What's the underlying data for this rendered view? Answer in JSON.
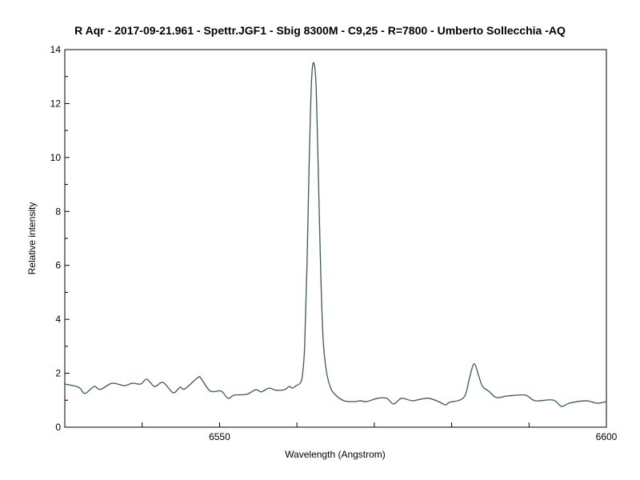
{
  "chart_data": {
    "type": "line",
    "title": "R Aqr - 2017-09-21.961 - Spettr.JGF1 - Sbig 8300M - C9,25 - R=7800 - Umberto Sollecchia -AQ",
    "xlabel": "Wavelength (Angstrom)",
    "ylabel": "Relative intensity",
    "xlim": [
      6530,
      6600
    ],
    "ylim": [
      0,
      14
    ],
    "x_tick_labels": [
      "6550",
      "6600"
    ],
    "x_ticks": [
      6540,
      6550,
      6560,
      6570,
      6580,
      6590,
      6600
    ],
    "y_tick_labels": [
      "0",
      "2",
      "4",
      "6",
      "8",
      "10",
      "12",
      "14"
    ],
    "y_minor_ticks": [
      1,
      3,
      5,
      7,
      9,
      11,
      13
    ],
    "grid": false,
    "line_color": "#3f5656",
    "series": [
      {
        "x": [
          6530.0,
          6531.8,
          6532.6,
          6533.8,
          6534.6,
          6536.1,
          6537.7,
          6538.7,
          6539.8,
          6540.6,
          6541.6,
          6542.7,
          6544.0,
          6544.9,
          6545.5,
          6547.2,
          6547.6,
          6548.8,
          6550.2,
          6551.1,
          6551.9,
          6553.5,
          6554.7,
          6555.4,
          6556.4,
          6557.3,
          6558.4,
          6559.0,
          6559.4,
          6559.9,
          6560.4,
          6560.7,
          6561.0,
          6561.3,
          6561.6,
          6561.9,
          6562.2,
          6562.5,
          6562.8,
          6563.1,
          6563.4,
          6563.8,
          6564.3,
          6564.9,
          6566.1,
          6567.5,
          6568.2,
          6569.0,
          6570.4,
          6571.6,
          6572.5,
          6573.5,
          6574.9,
          6576.0,
          6577.1,
          6578.3,
          6579.2,
          6579.7,
          6581.1,
          6581.8,
          6582.3,
          6582.9,
          6583.5,
          6584.0,
          6584.9,
          6585.8,
          6587.3,
          6589.5,
          6590.8,
          6593.1,
          6594.2,
          6595.2,
          6597.3,
          6598.8,
          6600.0
        ],
        "y": [
          1.6,
          1.48,
          1.25,
          1.51,
          1.4,
          1.63,
          1.54,
          1.63,
          1.6,
          1.78,
          1.51,
          1.66,
          1.28,
          1.48,
          1.42,
          1.84,
          1.81,
          1.34,
          1.34,
          1.07,
          1.19,
          1.22,
          1.39,
          1.31,
          1.45,
          1.37,
          1.39,
          1.51,
          1.45,
          1.54,
          1.63,
          1.9,
          3.0,
          6.0,
          10.0,
          12.9,
          13.5,
          12.5,
          9.0,
          5.5,
          3.2,
          2.1,
          1.5,
          1.22,
          0.98,
          0.95,
          0.98,
          0.95,
          1.07,
          1.07,
          0.86,
          1.07,
          0.98,
          1.04,
          1.07,
          0.95,
          0.83,
          0.92,
          1.01,
          1.22,
          1.81,
          2.35,
          1.9,
          1.51,
          1.31,
          1.1,
          1.16,
          1.19,
          0.98,
          1.01,
          0.77,
          0.89,
          0.98,
          0.89,
          0.95
        ]
      }
    ]
  }
}
